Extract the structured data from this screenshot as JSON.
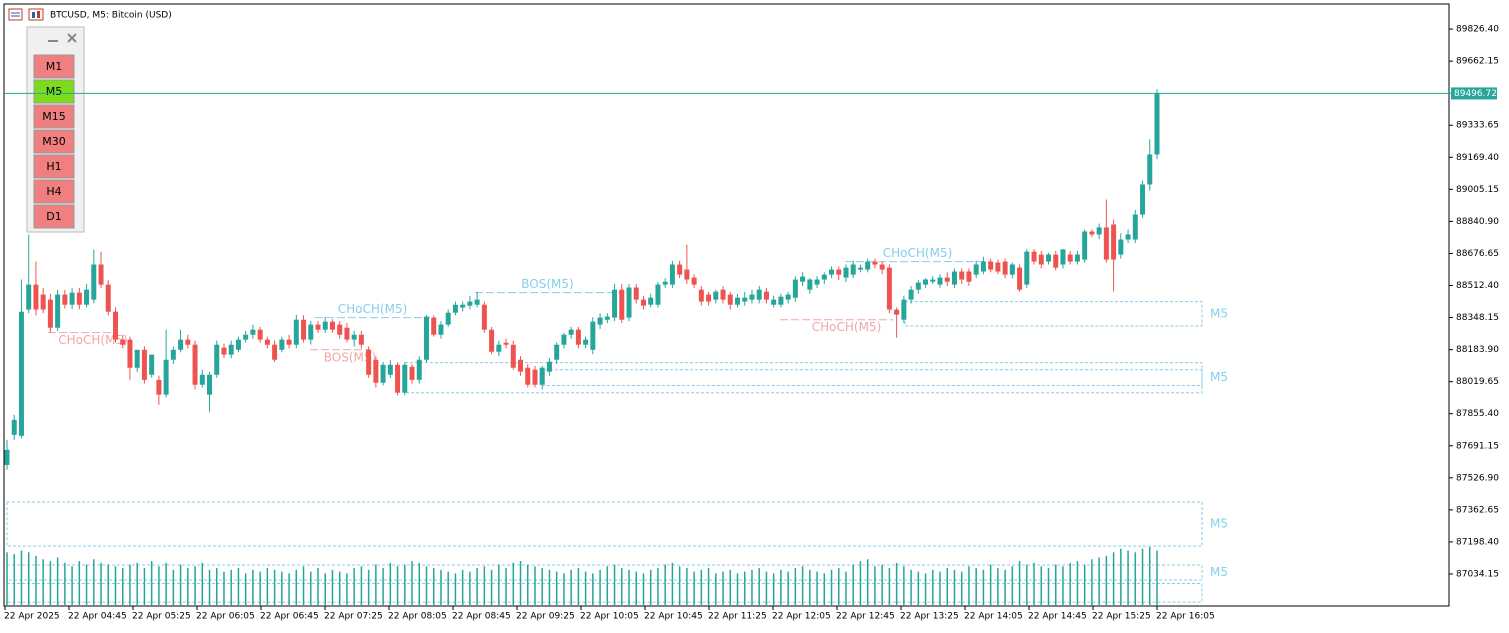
{
  "chart_data": {
    "type": "candlestick",
    "title": "BTCUSD, M5:  Bitcoin (USD)",
    "timeframes": [
      "M1",
      "M5",
      "M15",
      "M30",
      "H1",
      "H4",
      "D1"
    ],
    "selected": "M5",
    "up_color": "#26a69a",
    "down_color": "#ef5350",
    "ylim": [
      86870,
      89955
    ],
    "yticks": [
      {
        "value": 89826.4,
        "label": "89826.40"
      },
      89662.15,
      89333.65,
      {
        "value": 89169.4,
        "label": "89169.40"
      },
      89005.15,
      {
        "value": 88840.9,
        "label": "88840.90"
      },
      88676.65,
      {
        "value": 88512.4,
        "label": "88512.40"
      },
      88348.15,
      {
        "value": 88183.9,
        "label": "88183.90"
      },
      88019.65,
      {
        "value": 87855.4,
        "label": "87855.40"
      },
      87691.15,
      {
        "value": 87526.9,
        "label": "87526.90"
      },
      87362.65,
      {
        "value": 87198.4,
        "label": "87198.40"
      },
      87034.15
    ],
    "x_labels": [
      "22 Apr 2025",
      "22 Apr 04:45",
      "22 Apr 05:25",
      "22 Apr 06:05",
      "22 Apr 06:45",
      "22 Apr 07:25",
      "22 Apr 08:05",
      "22 Apr 08:45",
      "22 Apr 09:25",
      "22 Apr 10:05",
      "22 Apr 10:45",
      "22 Apr 11:25",
      "22 Apr 12:05",
      "22 Apr 12:45",
      "22 Apr 13:25",
      "22 Apr 14:05",
      "22 Apr 14:45",
      "22 Apr 15:25",
      "22 Apr 16:05"
    ],
    "current_price": {
      "value": 89496.72,
      "label": "89496.72"
    },
    "candles": [
      [
        87593,
        87722,
        87568,
        87670
      ],
      [
        87747,
        87850,
        87720,
        87824
      ],
      [
        87742,
        88543,
        87730,
        88378
      ],
      [
        88389,
        88774,
        88370,
        88517
      ],
      [
        88517,
        88635,
        88360,
        88389
      ],
      [
        88466,
        88500,
        88370,
        88389
      ],
      [
        88440,
        88470,
        88270,
        88296
      ],
      [
        88296,
        88490,
        88280,
        88466
      ],
      [
        88466,
        88490,
        88395,
        88414
      ],
      [
        88414,
        88500,
        88390,
        88476
      ],
      [
        88476,
        88500,
        88390,
        88414
      ],
      [
        88414,
        88520,
        88400,
        88491
      ],
      [
        88440,
        88697,
        88420,
        88620
      ],
      [
        88620,
        88686,
        88500,
        88517
      ],
      [
        88517,
        88540,
        88360,
        88378
      ],
      [
        88378,
        88400,
        88220,
        88235
      ],
      [
        88235,
        88260,
        88190,
        88209
      ],
      [
        88235,
        88250,
        88029,
        88091
      ],
      [
        88091,
        88170,
        88070,
        88183
      ],
      [
        88183,
        88200,
        88010,
        88029
      ],
      [
        88055,
        88150,
        88040,
        88158
      ],
      [
        88029,
        88050,
        87901,
        87953
      ],
      [
        87953,
        88286,
        87940,
        88132
      ],
      [
        88132,
        88200,
        88110,
        88183
      ],
      [
        88183,
        88286,
        88170,
        88235
      ],
      [
        88235,
        88260,
        88190,
        88209
      ],
      [
        88209,
        88230,
        87980,
        88004
      ],
      [
        88004,
        88080,
        87990,
        88055
      ],
      [
        87953,
        88070,
        87865,
        88055
      ],
      [
        88055,
        88230,
        88040,
        88209
      ],
      [
        88194,
        88215,
        88140,
        88158
      ],
      [
        88158,
        88230,
        88140,
        88209
      ],
      [
        88183,
        88250,
        88170,
        88235
      ],
      [
        88235,
        88280,
        88220,
        88260
      ],
      [
        88260,
        88312,
        88240,
        88286
      ],
      [
        88286,
        88300,
        88220,
        88235
      ],
      [
        88235,
        88250,
        88190,
        88209
      ],
      [
        88209,
        88230,
        88120,
        88132
      ],
      [
        88183,
        88250,
        88170,
        88235
      ],
      [
        88235,
        88260,
        88190,
        88209
      ],
      [
        88209,
        88363,
        88190,
        88337
      ],
      [
        88337,
        88360,
        88220,
        88235
      ],
      [
        88235,
        88330,
        88210,
        88312
      ],
      [
        88312,
        88330,
        88270,
        88286
      ],
      [
        88286,
        88350,
        88270,
        88327
      ],
      [
        88327,
        88340,
        88270,
        88286
      ],
      [
        88312,
        88330,
        88240,
        88260
      ],
      [
        88296,
        88320,
        88220,
        88235
      ],
      [
        88235,
        88280,
        88200,
        88260
      ],
      [
        88260,
        88280,
        88190,
        88209
      ],
      [
        88183,
        88200,
        88040,
        88055
      ],
      [
        88132,
        88150,
        87990,
        88014
      ],
      [
        88014,
        88120,
        88000,
        88106
      ],
      [
        88055,
        88130,
        88040,
        88106
      ],
      [
        88106,
        88120,
        87950,
        87963
      ],
      [
        87963,
        88120,
        87950,
        88106
      ],
      [
        88096,
        88110,
        88010,
        88029
      ],
      [
        88029,
        88150,
        88010,
        88132
      ],
      [
        88132,
        88360,
        88120,
        88353
      ],
      [
        88348,
        88360,
        88250,
        88260
      ],
      [
        88260,
        88330,
        88240,
        88312
      ],
      [
        88312,
        88390,
        88300,
        88373
      ],
      [
        88373,
        88430,
        88360,
        88414
      ],
      [
        88399,
        88430,
        88380,
        88414
      ],
      [
        88409,
        88460,
        88390,
        88430
      ],
      [
        88414,
        88480,
        88400,
        88440
      ],
      [
        88414,
        88430,
        88270,
        88286
      ],
      [
        88286,
        88300,
        88160,
        88173
      ],
      [
        88173,
        88230,
        88150,
        88209
      ],
      [
        88219,
        88240,
        88190,
        88209
      ],
      [
        88209,
        88230,
        88080,
        88091
      ],
      [
        88132,
        88150,
        88050,
        88071
      ],
      [
        88091,
        88110,
        87990,
        88004
      ],
      [
        88081,
        88100,
        87990,
        88004
      ],
      [
        88004,
        88100,
        87980,
        88091
      ],
      [
        88071,
        88140,
        88050,
        88122
      ],
      [
        88132,
        88220,
        88110,
        88209
      ],
      [
        88209,
        88270,
        88190,
        88260
      ],
      [
        88260,
        88300,
        88240,
        88286
      ],
      [
        88286,
        88300,
        88190,
        88209
      ],
      [
        88209,
        88250,
        88190,
        88235
      ],
      [
        88183,
        88350,
        88160,
        88327
      ],
      [
        88312,
        88370,
        88290,
        88348
      ],
      [
        88337,
        88370,
        88320,
        88353
      ],
      [
        88348,
        88520,
        88330,
        88491
      ],
      [
        88491,
        88520,
        88320,
        88337
      ],
      [
        88348,
        88520,
        88330,
        88502
      ],
      [
        88502,
        88520,
        88420,
        88440
      ],
      [
        88440,
        88460,
        88390,
        88409
      ],
      [
        88414,
        88470,
        88400,
        88450
      ],
      [
        88414,
        88530,
        88400,
        88517
      ],
      [
        88517,
        88550,
        88500,
        88532
      ],
      [
        88517,
        88640,
        88500,
        88620
      ],
      [
        88620,
        88640,
        88550,
        88568
      ],
      [
        88594,
        88722,
        88520,
        88543
      ],
      [
        88553,
        88570,
        88500,
        88517
      ],
      [
        88491,
        88510,
        88410,
        88430
      ],
      [
        88466,
        88480,
        88410,
        88430
      ],
      [
        88440,
        88490,
        88420,
        88481
      ],
      [
        88491,
        88510,
        88420,
        88440
      ],
      [
        88466,
        88480,
        88390,
        88414
      ],
      [
        88414,
        88470,
        88400,
        88450
      ],
      [
        88430,
        88480,
        88410,
        88450
      ],
      [
        88440,
        88490,
        88420,
        88466
      ],
      [
        88440,
        88510,
        88420,
        88491
      ],
      [
        88481,
        88500,
        88420,
        88440
      ],
      [
        88414,
        88460,
        88400,
        88440
      ],
      [
        88414,
        88470,
        88400,
        88455
      ],
      [
        88440,
        88480,
        88420,
        88466
      ],
      [
        88450,
        88560,
        88430,
        88543
      ],
      [
        88532,
        88580,
        88510,
        88558
      ],
      [
        88491,
        88550,
        88470,
        88543
      ],
      [
        88517,
        88560,
        88500,
        88543
      ],
      [
        88543,
        88580,
        88520,
        88568
      ],
      [
        88568,
        88610,
        88550,
        88594
      ],
      [
        88594,
        88610,
        88540,
        88568
      ],
      [
        88553,
        88620,
        88530,
        88604
      ],
      [
        88568,
        88640,
        88550,
        88620
      ],
      [
        88594,
        88620,
        88580,
        88604
      ],
      [
        88594,
        88650,
        88580,
        88635
      ],
      [
        88635,
        88650,
        88600,
        88620
      ],
      [
        88620,
        88635,
        88570,
        88594
      ],
      [
        88604,
        88620,
        88370,
        88389
      ],
      [
        88389,
        88400,
        88245,
        88363
      ],
      [
        88337,
        88460,
        88320,
        88440
      ],
      [
        88440,
        88510,
        88420,
        88491
      ],
      [
        88491,
        88540,
        88470,
        88527
      ],
      [
        88517,
        88550,
        88500,
        88543
      ],
      [
        88532,
        88560,
        88520,
        88543
      ],
      [
        88517,
        88570,
        88500,
        88553
      ],
      [
        88553,
        88580,
        88510,
        88532
      ],
      [
        88517,
        88600,
        88500,
        88584
      ],
      [
        88584,
        88600,
        88520,
        88543
      ],
      [
        88584,
        88600,
        88510,
        88532
      ],
      [
        88568,
        88640,
        88550,
        88620
      ],
      [
        88584,
        88660,
        88570,
        88635
      ],
      [
        88635,
        88650,
        88580,
        88594
      ],
      [
        88630,
        88645,
        88570,
        88584
      ],
      [
        88635,
        88650,
        88550,
        88568
      ],
      [
        88568,
        88630,
        88550,
        88620
      ],
      [
        88604,
        88620,
        88480,
        88491
      ],
      [
        88517,
        88700,
        88500,
        88686
      ],
      [
        88686,
        88700,
        88620,
        88635
      ],
      [
        88671,
        88690,
        88600,
        88620
      ],
      [
        88635,
        88680,
        88620,
        88671
      ],
      [
        88671,
        88690,
        88590,
        88604
      ],
      [
        88620,
        88700,
        88600,
        88697
      ],
      [
        88671,
        88690,
        88620,
        88635
      ],
      [
        88635,
        88690,
        88620,
        88671
      ],
      [
        88645,
        88800,
        88630,
        88789
      ],
      [
        88789,
        88800,
        88760,
        88774
      ],
      [
        88774,
        88830,
        88750,
        88810
      ],
      [
        88810,
        88953,
        88630,
        88645
      ],
      [
        88825,
        88850,
        88481,
        88645
      ],
      [
        88671,
        88780,
        88650,
        88748
      ],
      [
        88748,
        88800,
        88730,
        88774
      ],
      [
        88748,
        88900,
        88730,
        88876
      ],
      [
        88876,
        89050,
        88860,
        89030
      ],
      [
        89030,
        89261,
        89000,
        89184
      ],
      [
        89184,
        89518,
        89160,
        89496.72
      ]
    ],
    "volume": [
      300,
      290,
      310,
      300,
      280,
      260,
      250,
      270,
      240,
      220,
      250,
      230,
      260,
      240,
      230,
      220,
      210,
      230,
      240,
      210,
      250,
      220,
      240,
      200,
      230,
      210,
      220,
      240,
      200,
      210,
      190,
      200,
      210,
      180,
      200,
      190,
      210,
      200,
      190,
      180,
      200,
      220,
      190,
      210,
      180,
      200,
      190,
      180,
      210,
      220,
      200,
      230,
      210,
      240,
      220,
      230,
      250,
      240,
      220,
      210,
      200,
      190,
      180,
      200,
      190,
      210,
      220,
      200,
      230,
      210,
      240,
      250,
      230,
      220,
      210,
      200,
      190,
      180,
      200,
      210,
      190,
      180,
      200,
      220,
      230,
      210,
      200,
      190,
      180,
      200,
      210,
      230,
      240,
      220,
      210,
      190,
      200,
      210,
      180,
      190,
      200,
      180,
      190,
      200,
      210,
      190,
      180,
      200,
      190,
      210,
      220,
      200,
      190,
      180,
      200,
      210,
      190,
      230,
      250,
      260,
      220,
      230,
      210,
      240,
      220,
      200,
      190,
      180,
      200,
      190,
      210,
      200,
      190,
      220,
      210,
      200,
      230,
      210,
      200,
      220,
      250,
      230,
      240,
      220,
      210,
      230,
      220,
      240,
      250,
      230,
      260,
      270,
      280,
      300,
      320,
      310,
      300,
      320,
      330,
      310
    ],
    "structures": [
      {
        "label": "CHoCH(M5)",
        "price": 88271,
        "color": "#f4a6a6"
      },
      {
        "label": "CHoCH(M5)",
        "price": 88348,
        "color": "#87ceeb"
      },
      {
        "label": "BOS(M5)",
        "price": 88183,
        "color": "#f4a6a6"
      },
      {
        "label": "BOS(M5)",
        "price": 88476,
        "color": "#87ceeb"
      },
      {
        "label": "CHoCH(M5)",
        "price": 88337,
        "color": "#f4a6a6"
      },
      {
        "label": "CHoCH(M5)",
        "price": 88635,
        "color": "#87ceeb"
      }
    ],
    "zones": [
      {
        "top": 88430,
        "bottom": 88305,
        "label": "M5"
      },
      {
        "top": 88117,
        "bottom": 87963,
        "label": "M5"
      },
      {
        "top": 88081,
        "bottom": 88000
      },
      {
        "top": 87403,
        "bottom": 87177,
        "label": "M5"
      },
      {
        "top": 87080,
        "bottom": 87003,
        "label": "M5"
      },
      {
        "top": 86985,
        "bottom": 86890
      }
    ],
    "zone_color": "#87ceeb"
  }
}
